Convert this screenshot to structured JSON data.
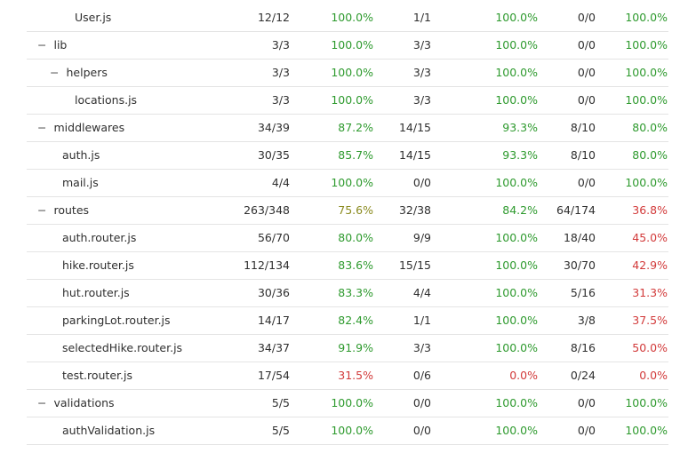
{
  "coverage": {
    "rows": [
      {
        "toggle": "",
        "name": "User.js",
        "indent": 3,
        "statements": "12/12",
        "statements_pct": "100.0%",
        "branches": "1/1",
        "branches_pct": "100.0%",
        "functions": "0/0",
        "functions_pct": "100.0%",
        "s_class": "hi",
        "b_class": "hi",
        "f_class": "hi"
      },
      {
        "toggle": "−",
        "name": "lib",
        "indent": 0,
        "statements": "3/3",
        "statements_pct": "100.0%",
        "branches": "3/3",
        "branches_pct": "100.0%",
        "functions": "0/0",
        "functions_pct": "100.0%",
        "s_class": "hi",
        "b_class": "hi",
        "f_class": "hi"
      },
      {
        "toggle": "−",
        "name": "helpers",
        "indent": 1,
        "statements": "3/3",
        "statements_pct": "100.0%",
        "branches": "3/3",
        "branches_pct": "100.0%",
        "functions": "0/0",
        "functions_pct": "100.0%",
        "s_class": "hi",
        "b_class": "hi",
        "f_class": "hi"
      },
      {
        "toggle": "",
        "name": "locations.js",
        "indent": 3,
        "statements": "3/3",
        "statements_pct": "100.0%",
        "branches": "3/3",
        "branches_pct": "100.0%",
        "functions": "0/0",
        "functions_pct": "100.0%",
        "s_class": "hi",
        "b_class": "hi",
        "f_class": "hi"
      },
      {
        "toggle": "−",
        "name": "middlewares",
        "indent": 0,
        "statements": "34/39",
        "statements_pct": "87.2%",
        "branches": "14/15",
        "branches_pct": "93.3%",
        "functions": "8/10",
        "functions_pct": "80.0%",
        "s_class": "hi",
        "b_class": "hi",
        "f_class": "hi"
      },
      {
        "toggle": "",
        "name": "auth.js",
        "indent": 2,
        "statements": "30/35",
        "statements_pct": "85.7%",
        "branches": "14/15",
        "branches_pct": "93.3%",
        "functions": "8/10",
        "functions_pct": "80.0%",
        "s_class": "hi",
        "b_class": "hi",
        "f_class": "hi"
      },
      {
        "toggle": "",
        "name": "mail.js",
        "indent": 2,
        "statements": "4/4",
        "statements_pct": "100.0%",
        "branches": "0/0",
        "branches_pct": "100.0%",
        "functions": "0/0",
        "functions_pct": "100.0%",
        "s_class": "hi",
        "b_class": "hi",
        "f_class": "hi"
      },
      {
        "toggle": "−",
        "name": "routes",
        "indent": 0,
        "statements": "263/348",
        "statements_pct": "75.6%",
        "branches": "32/38",
        "branches_pct": "84.2%",
        "functions": "64/174",
        "functions_pct": "36.8%",
        "s_class": "md",
        "b_class": "hi",
        "f_class": "lo"
      },
      {
        "toggle": "",
        "name": "auth.router.js",
        "indent": 2,
        "statements": "56/70",
        "statements_pct": "80.0%",
        "branches": "9/9",
        "branches_pct": "100.0%",
        "functions": "18/40",
        "functions_pct": "45.0%",
        "s_class": "hi",
        "b_class": "hi",
        "f_class": "lo"
      },
      {
        "toggle": "",
        "name": "hike.router.js",
        "indent": 2,
        "statements": "112/134",
        "statements_pct": "83.6%",
        "branches": "15/15",
        "branches_pct": "100.0%",
        "functions": "30/70",
        "functions_pct": "42.9%",
        "s_class": "hi",
        "b_class": "hi",
        "f_class": "lo"
      },
      {
        "toggle": "",
        "name": "hut.router.js",
        "indent": 2,
        "statements": "30/36",
        "statements_pct": "83.3%",
        "branches": "4/4",
        "branches_pct": "100.0%",
        "functions": "5/16",
        "functions_pct": "31.3%",
        "s_class": "hi",
        "b_class": "hi",
        "f_class": "lo"
      },
      {
        "toggle": "",
        "name": "parkingLot.router.js",
        "indent": 2,
        "statements": "14/17",
        "statements_pct": "82.4%",
        "branches": "1/1",
        "branches_pct": "100.0%",
        "functions": "3/8",
        "functions_pct": "37.5%",
        "s_class": "hi",
        "b_class": "hi",
        "f_class": "lo"
      },
      {
        "toggle": "",
        "name": "selectedHike.router.js",
        "indent": 2,
        "statements": "34/37",
        "statements_pct": "91.9%",
        "branches": "3/3",
        "branches_pct": "100.0%",
        "functions": "8/16",
        "functions_pct": "50.0%",
        "s_class": "hi",
        "b_class": "hi",
        "f_class": "lo"
      },
      {
        "toggle": "",
        "name": "test.router.js",
        "indent": 2,
        "statements": "17/54",
        "statements_pct": "31.5%",
        "branches": "0/6",
        "branches_pct": "0.0%",
        "functions": "0/24",
        "functions_pct": "0.0%",
        "s_class": "lo",
        "b_class": "lo",
        "f_class": "lo"
      },
      {
        "toggle": "−",
        "name": "validations",
        "indent": 0,
        "statements": "5/5",
        "statements_pct": "100.0%",
        "branches": "0/0",
        "branches_pct": "100.0%",
        "functions": "0/0",
        "functions_pct": "100.0%",
        "s_class": "hi",
        "b_class": "hi",
        "f_class": "hi"
      },
      {
        "toggle": "",
        "name": "authValidation.js",
        "indent": 2,
        "statements": "5/5",
        "statements_pct": "100.0%",
        "branches": "0/0",
        "branches_pct": "100.0%",
        "functions": "0/0",
        "functions_pct": "100.0%",
        "s_class": "hi",
        "b_class": "hi",
        "f_class": "hi"
      }
    ]
  }
}
